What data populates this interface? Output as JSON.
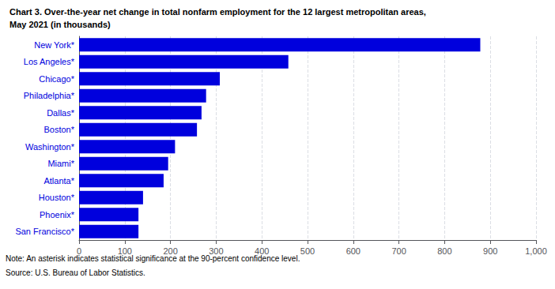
{
  "chart_data": {
    "type": "bar",
    "orientation": "horizontal",
    "title": "Chart 3. Over-the-year net change in total nonfarm employment for the 12 largest metropolitan areas,",
    "subtitle": "May 2021 (in thousands)",
    "annotations": [
      "Note: An asterisk indicates statistical significance at the 90-percent confidence level.",
      "Source: U.S. Bureau of Labor Statistics."
    ],
    "categories": [
      "San Francisco*",
      "Phoenix*",
      "Houston*",
      "Atlanta*",
      "Miami*",
      "Washington*",
      "Boston*",
      "Dallas*",
      "Philadelphia*",
      "Chicago*",
      "Los Angeles*",
      "New York*"
    ],
    "values": [
      130,
      130,
      140,
      185,
      195,
      210,
      258,
      268,
      278,
      308,
      458,
      878
    ],
    "color": "#0000dd",
    "xlim": [
      0,
      1000
    ],
    "xticks": [
      0,
      100,
      200,
      300,
      400,
      500,
      600,
      700,
      800,
      900,
      {
        "value": 1000,
        "label": "1,000"
      }
    ],
    "grid": true
  }
}
